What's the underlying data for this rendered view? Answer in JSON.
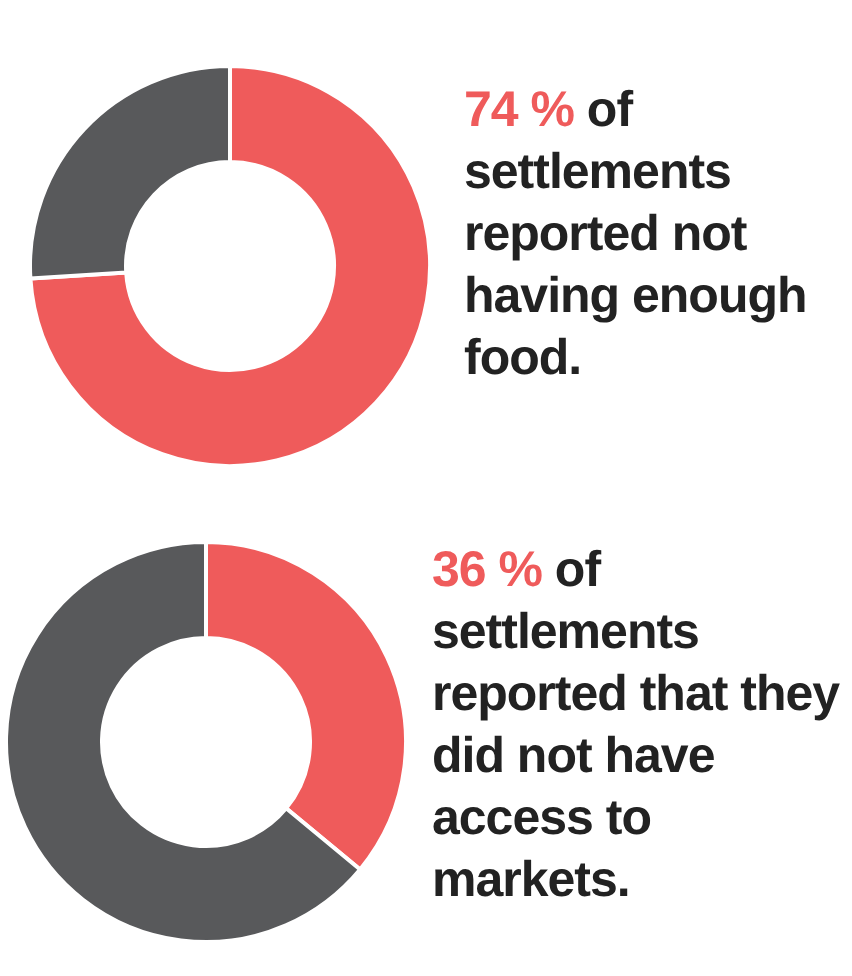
{
  "chart_data": [
    {
      "type": "donut",
      "categories": [
        null,
        null
      ],
      "values": [
        74,
        26
      ],
      "colors": [
        "#ef5b5b",
        "#58595b"
      ],
      "annotations": [
        "74 %",
        " of settlements reported not having enough food."
      ]
    },
    {
      "type": "donut",
      "categories": [
        null,
        null
      ],
      "values": [
        36,
        64
      ],
      "colors": [
        "#ef5b5b",
        "#58595b"
      ],
      "annotations": [
        "36 %",
        " of settlements reported that they did not have access to markets."
      ]
    }
  ]
}
